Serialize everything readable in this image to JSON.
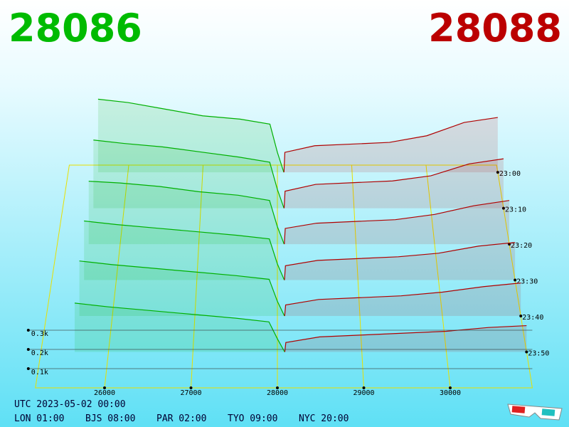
{
  "header": {
    "bid": 28086,
    "ask": 28088
  },
  "chart_data": {
    "type": "depth3d",
    "xlim": [
      25200,
      30950
    ],
    "xticks": [
      26000,
      27000,
      28000,
      29000,
      30000
    ],
    "zticks": [
      {
        "value": 0.1,
        "label": "0.1k"
      },
      {
        "value": 0.2,
        "label": "0.2k"
      },
      {
        "value": 0.3,
        "label": "0.3k"
      }
    ],
    "bid": {
      "color": "#00b000",
      "prices": [
        25600,
        26000,
        26500,
        27000,
        27500,
        27900,
        28000,
        28086
      ]
    },
    "ask": {
      "color": "#b00000",
      "prices": [
        28088,
        28100,
        28500,
        29000,
        29500,
        30000,
        30500,
        30950
      ]
    },
    "snapshots": [
      {
        "time": "23:00",
        "bid": [
          0.44,
          0.42,
          0.38,
          0.34,
          0.32,
          0.29,
          0.12,
          0
        ],
        "ask": [
          0,
          0.12,
          0.16,
          0.17,
          0.18,
          0.22,
          0.3,
          0.33
        ]
      },
      {
        "time": "23:10",
        "bid": [
          0.4,
          0.38,
          0.36,
          0.33,
          0.3,
          0.27,
          0.11,
          0
        ],
        "ask": [
          0,
          0.1,
          0.14,
          0.15,
          0.16,
          0.19,
          0.26,
          0.29
        ]
      },
      {
        "time": "23:20",
        "bid": [
          0.36,
          0.35,
          0.33,
          0.3,
          0.28,
          0.25,
          0.1,
          0
        ],
        "ask": [
          0,
          0.09,
          0.12,
          0.13,
          0.14,
          0.17,
          0.22,
          0.25
        ]
      },
      {
        "time": "23:30",
        "bid": [
          0.33,
          0.31,
          0.29,
          0.27,
          0.25,
          0.23,
          0.09,
          0
        ],
        "ask": [
          0,
          0.08,
          0.11,
          0.12,
          0.13,
          0.15,
          0.19,
          0.21
        ]
      },
      {
        "time": "23:40",
        "bid": [
          0.3,
          0.28,
          0.26,
          0.24,
          0.22,
          0.2,
          0.08,
          0
        ],
        "ask": [
          0,
          0.06,
          0.09,
          0.1,
          0.11,
          0.13,
          0.16,
          0.18
        ]
      },
      {
        "time": "23:50",
        "bid": [
          0.26,
          0.24,
          0.22,
          0.2,
          0.18,
          0.16,
          0.07,
          0
        ],
        "ask": [
          0,
          0.05,
          0.08,
          0.09,
          0.1,
          0.11,
          0.13,
          0.14
        ]
      }
    ]
  },
  "footer": {
    "utc": "UTC 2023-05-02 00:00",
    "clocks": [
      "LON 01:00",
      "BJS 08:00",
      "PAR 02:00",
      "TYO 09:00",
      "NYC 20:00"
    ]
  }
}
